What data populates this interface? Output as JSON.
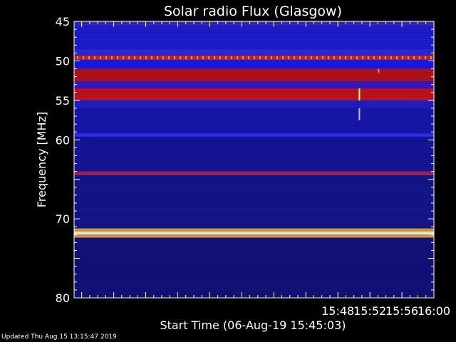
{
  "chart_data": {
    "type": "heatmap",
    "title": "Solar radio Flux (Glasgow)",
    "xlabel": "Start Time (06-Aug-19 15:45:03)",
    "ylabel": "Frequency [MHz]",
    "xlim_minutes": [
      15.05,
      60.0
    ],
    "ylim": [
      45.0,
      80.0
    ],
    "x_ticks": [
      {
        "minute": 48,
        "label": "15:48"
      },
      {
        "minute": 52,
        "label": "15:52"
      },
      {
        "minute": 56,
        "label": "15:56"
      },
      {
        "minute": 60,
        "label": "16:00"
      }
    ],
    "y_ticks": [
      {
        "value": 45,
        "label": "45"
      },
      {
        "value": 50,
        "label": "50"
      },
      {
        "value": 55,
        "label": "55"
      },
      {
        "value": 60,
        "label": "60"
      },
      {
        "value": 70,
        "label": "70"
      },
      {
        "value": 80,
        "label": "80"
      }
    ],
    "bands": [
      {
        "from": 45.0,
        "to": 45.5,
        "color": "#3a2ab0"
      },
      {
        "from": 45.5,
        "to": 48.5,
        "color": "#1e1ed2"
      },
      {
        "from": 48.5,
        "to": 49.3,
        "color": "#2a2ae6"
      },
      {
        "from": 49.3,
        "to": 49.9,
        "color": "#c02830"
      },
      {
        "from": 49.9,
        "to": 51.0,
        "color": "#1a1af0"
      },
      {
        "from": 51.0,
        "to": 52.6,
        "color": "#b8141c"
      },
      {
        "from": 52.6,
        "to": 53.5,
        "color": "#3a1ac8"
      },
      {
        "from": 53.5,
        "to": 55.0,
        "color": "#c8141c"
      },
      {
        "from": 55.0,
        "to": 56.0,
        "color": "#2020c8"
      },
      {
        "from": 56.0,
        "to": 59.2,
        "color": "#1818b0"
      },
      {
        "from": 59.2,
        "to": 59.6,
        "color": "#3030ff"
      },
      {
        "from": 59.6,
        "to": 64.0,
        "color": "#16169e"
      },
      {
        "from": 64.0,
        "to": 64.5,
        "color": "#a0285a"
      },
      {
        "from": 64.5,
        "to": 71.2,
        "color": "#15158c"
      },
      {
        "from": 71.2,
        "to": 71.6,
        "color": "#e0a040"
      },
      {
        "from": 71.6,
        "to": 72.0,
        "color": "#ffffd0"
      },
      {
        "from": 72.0,
        "to": 72.4,
        "color": "#e0a040"
      },
      {
        "from": 72.4,
        "to": 80.0,
        "color": "#12127a"
      }
    ],
    "spikes": [
      {
        "minute": 50.6,
        "from": 53.5,
        "to": 55.0,
        "color": "#ffff80"
      },
      {
        "minute": 50.6,
        "from": 56.0,
        "to": 57.5,
        "color": "#c0c0ff"
      },
      {
        "minute": 53.0,
        "from": 51.0,
        "to": 51.5,
        "color": "#ff8080"
      }
    ],
    "grid": false
  },
  "footer": {
    "updated": "Updated Thu Aug 15 13:15:47 2019"
  }
}
